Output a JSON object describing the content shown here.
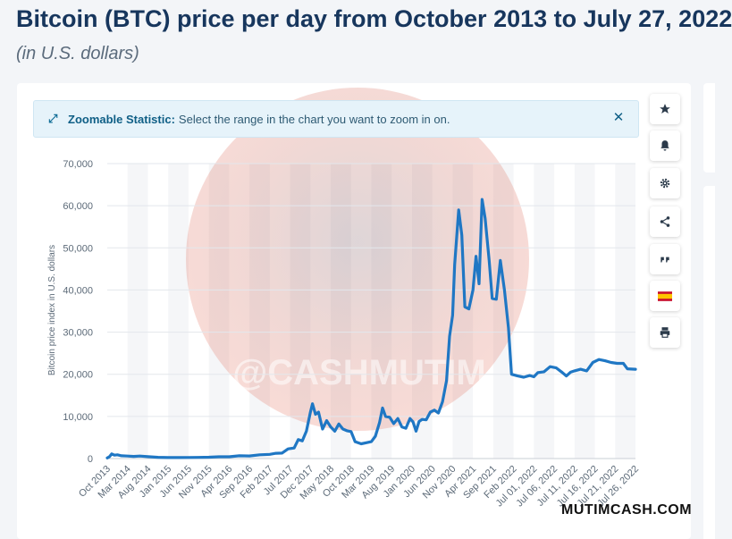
{
  "header": {
    "title": "Bitcoin (BTC) price per day from October 2013 to July 27, 2022",
    "subtitle": "(in U.S. dollars)"
  },
  "banner": {
    "label": "Zoomable Statistic:",
    "text": "Select the range in the chart you want to zoom in on."
  },
  "toolbar": {
    "icons": [
      "star-icon",
      "bell-icon",
      "gear-icon",
      "share-icon",
      "quote-icon",
      "spain-flag-icon",
      "print-icon"
    ]
  },
  "overlay": {
    "logo_text": "@CASHMUTIM",
    "watermark": "MUTIMCASH.COM"
  },
  "colors": {
    "line": "#1f77c4",
    "title": "#17365d",
    "banner_bg": "#e6f3fa"
  },
  "chart_data": {
    "type": "line",
    "title": "",
    "xlabel": "",
    "ylabel": "Bitcoin price index in U.S. dollars",
    "ylim": [
      0,
      70000
    ],
    "yticks": [
      0,
      10000,
      20000,
      30000,
      40000,
      50000,
      60000,
      70000
    ],
    "ytick_labels": [
      "0",
      "10,000",
      "20,000",
      "30,000",
      "40,000",
      "50,000",
      "60,000",
      "70,000"
    ],
    "grid": true,
    "xtick_labels": [
      "Oct 2013",
      "Mar 2014",
      "Aug 2014",
      "Jan 2015",
      "Jun 2015",
      "Nov 2015",
      "Apr 2016",
      "Sep 2016",
      "Feb 2017",
      "Jul 2017",
      "Dec 2017",
      "May 2018",
      "Oct 2018",
      "Mar 2019",
      "Aug 2019",
      "Jan 2020",
      "Jun 2020",
      "Nov 2020",
      "Apr 2021",
      "Sep 2021",
      "Feb 2022",
      "Jul 01, 2022",
      "Jul 06, 2022",
      "Jul 11, 2022",
      "Jul 16, 2022",
      "Jul 21, 2022",
      "Jul 26, 2022"
    ],
    "series": [
      {
        "values": [
          {
            "x": 0.0,
            "y": 150
          },
          {
            "x": 0.1,
            "y": 400
          },
          {
            "x": 0.22,
            "y": 1100
          },
          {
            "x": 0.35,
            "y": 800
          },
          {
            "x": 0.5,
            "y": 900
          },
          {
            "x": 0.7,
            "y": 650
          },
          {
            "x": 1.0,
            "y": 600
          },
          {
            "x": 1.3,
            "y": 500
          },
          {
            "x": 1.6,
            "y": 600
          },
          {
            "x": 2.0,
            "y": 450
          },
          {
            "x": 2.5,
            "y": 300
          },
          {
            "x": 3.0,
            "y": 230
          },
          {
            "x": 3.5,
            "y": 240
          },
          {
            "x": 4.0,
            "y": 250
          },
          {
            "x": 4.5,
            "y": 280
          },
          {
            "x": 5.0,
            "y": 320
          },
          {
            "x": 5.5,
            "y": 420
          },
          {
            "x": 6.0,
            "y": 430
          },
          {
            "x": 6.5,
            "y": 650
          },
          {
            "x": 7.0,
            "y": 620
          },
          {
            "x": 7.5,
            "y": 900
          },
          {
            "x": 8.0,
            "y": 1000
          },
          {
            "x": 8.3,
            "y": 1250
          },
          {
            "x": 8.6,
            "y": 1300
          },
          {
            "x": 8.9,
            "y": 2300
          },
          {
            "x": 9.2,
            "y": 2500
          },
          {
            "x": 9.4,
            "y": 4500
          },
          {
            "x": 9.6,
            "y": 4200
          },
          {
            "x": 9.8,
            "y": 6500
          },
          {
            "x": 10.0,
            "y": 11000
          },
          {
            "x": 10.1,
            "y": 13000
          },
          {
            "x": 10.25,
            "y": 10500
          },
          {
            "x": 10.4,
            "y": 11000
          },
          {
            "x": 10.6,
            "y": 7000
          },
          {
            "x": 10.8,
            "y": 9000
          },
          {
            "x": 11.0,
            "y": 7500
          },
          {
            "x": 11.2,
            "y": 6500
          },
          {
            "x": 11.4,
            "y": 8200
          },
          {
            "x": 11.6,
            "y": 7000
          },
          {
            "x": 11.8,
            "y": 6600
          },
          {
            "x": 12.0,
            "y": 6400
          },
          {
            "x": 12.2,
            "y": 4000
          },
          {
            "x": 12.5,
            "y": 3500
          },
          {
            "x": 12.8,
            "y": 3800
          },
          {
            "x": 13.0,
            "y": 4000
          },
          {
            "x": 13.2,
            "y": 5300
          },
          {
            "x": 13.4,
            "y": 8500
          },
          {
            "x": 13.55,
            "y": 12000
          },
          {
            "x": 13.7,
            "y": 10000
          },
          {
            "x": 13.9,
            "y": 9800
          },
          {
            "x": 14.1,
            "y": 8300
          },
          {
            "x": 14.3,
            "y": 9500
          },
          {
            "x": 14.5,
            "y": 7500
          },
          {
            "x": 14.7,
            "y": 7200
          },
          {
            "x": 14.9,
            "y": 9500
          },
          {
            "x": 15.05,
            "y": 8700
          },
          {
            "x": 15.2,
            "y": 6500
          },
          {
            "x": 15.35,
            "y": 8800
          },
          {
            "x": 15.5,
            "y": 9300
          },
          {
            "x": 15.7,
            "y": 9200
          },
          {
            "x": 15.9,
            "y": 11000
          },
          {
            "x": 16.1,
            "y": 11500
          },
          {
            "x": 16.3,
            "y": 10800
          },
          {
            "x": 16.5,
            "y": 13500
          },
          {
            "x": 16.7,
            "y": 18500
          },
          {
            "x": 16.85,
            "y": 29000
          },
          {
            "x": 17.0,
            "y": 34000
          },
          {
            "x": 17.1,
            "y": 46000
          },
          {
            "x": 17.3,
            "y": 59000
          },
          {
            "x": 17.45,
            "y": 53000
          },
          {
            "x": 17.6,
            "y": 36000
          },
          {
            "x": 17.8,
            "y": 35500
          },
          {
            "x": 18.0,
            "y": 40000
          },
          {
            "x": 18.15,
            "y": 48000
          },
          {
            "x": 18.3,
            "y": 41500
          },
          {
            "x": 18.45,
            "y": 61500
          },
          {
            "x": 18.6,
            "y": 57000
          },
          {
            "x": 18.8,
            "y": 47000
          },
          {
            "x": 18.95,
            "y": 38000
          },
          {
            "x": 19.15,
            "y": 37800
          },
          {
            "x": 19.35,
            "y": 47000
          },
          {
            "x": 19.55,
            "y": 40000
          },
          {
            "x": 19.75,
            "y": 31000
          },
          {
            "x": 19.9,
            "y": 20000
          },
          {
            "x": 20.2,
            "y": 19600
          },
          {
            "x": 20.5,
            "y": 19300
          },
          {
            "x": 20.8,
            "y": 19700
          },
          {
            "x": 21.0,
            "y": 19400
          },
          {
            "x": 21.2,
            "y": 20400
          },
          {
            "x": 21.5,
            "y": 20600
          },
          {
            "x": 21.8,
            "y": 21800
          },
          {
            "x": 22.1,
            "y": 21500
          },
          {
            "x": 22.4,
            "y": 20400
          },
          {
            "x": 22.6,
            "y": 19600
          },
          {
            "x": 22.8,
            "y": 20500
          },
          {
            "x": 23.0,
            "y": 20800
          },
          {
            "x": 23.3,
            "y": 21200
          },
          {
            "x": 23.6,
            "y": 20800
          },
          {
            "x": 23.9,
            "y": 22800
          },
          {
            "x": 24.2,
            "y": 23500
          },
          {
            "x": 24.5,
            "y": 23200
          },
          {
            "x": 24.8,
            "y": 22800
          },
          {
            "x": 25.1,
            "y": 22600
          },
          {
            "x": 25.4,
            "y": 22600
          },
          {
            "x": 25.6,
            "y": 21300
          },
          {
            "x": 26.0,
            "y": 21200
          }
        ]
      }
    ]
  }
}
